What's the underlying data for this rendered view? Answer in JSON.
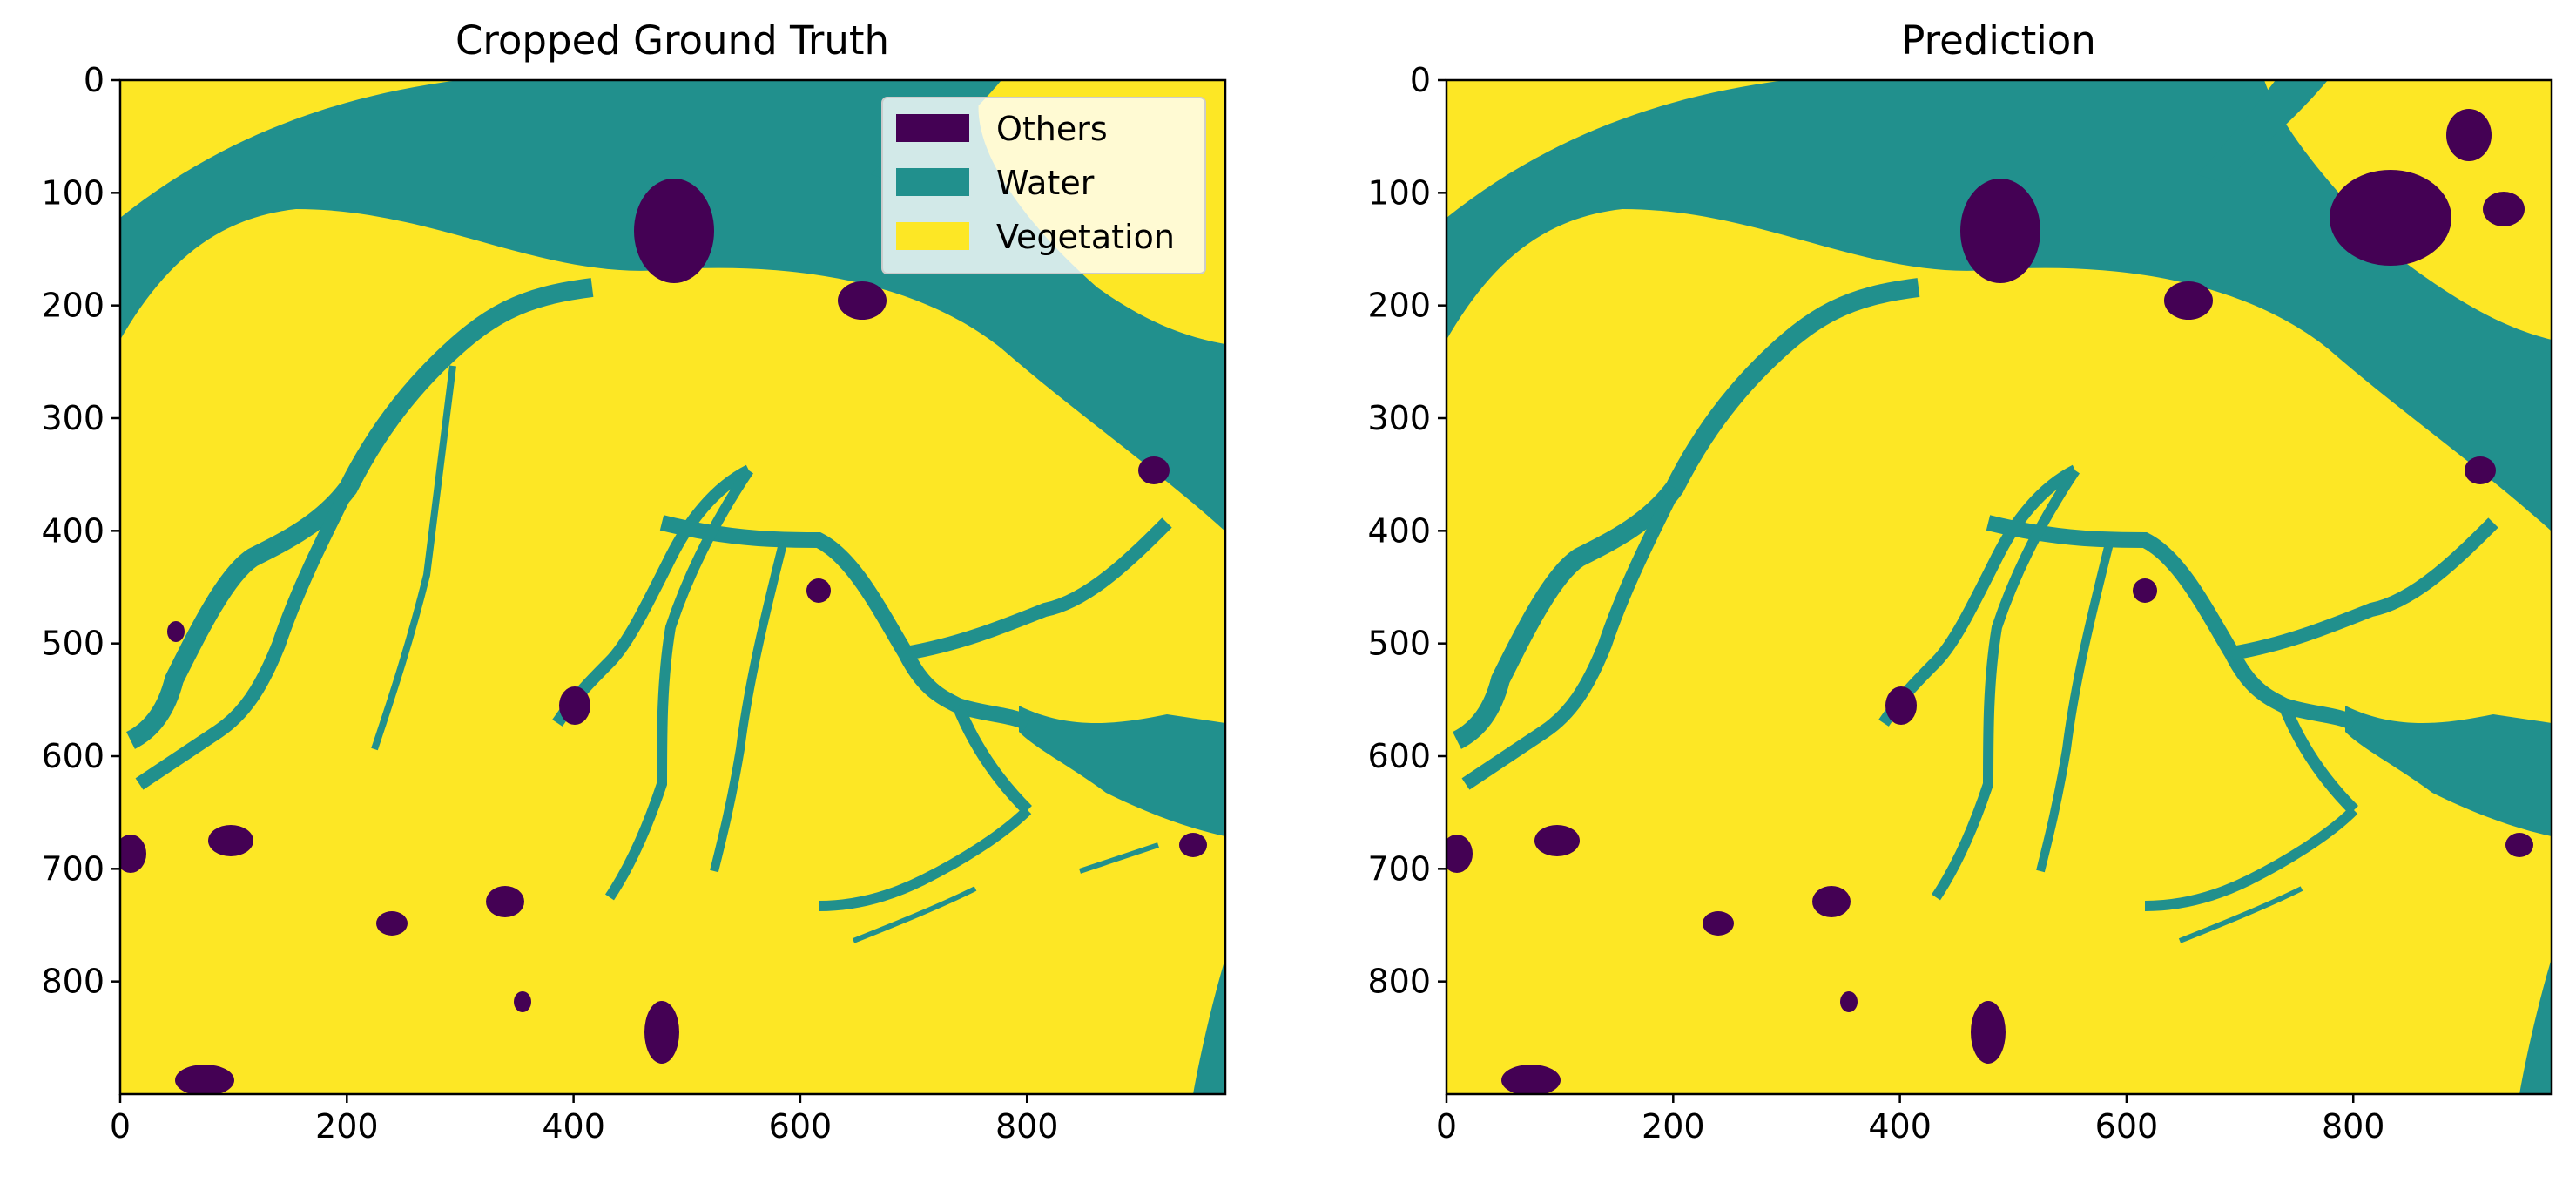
{
  "colors": {
    "others": "#440154",
    "water": "#21908d",
    "vegetation": "#fde725"
  },
  "chart_data": [
    {
      "type": "heatmap",
      "title": "Cropped Ground Truth",
      "xlabel": "",
      "ylabel": "",
      "xlim": [
        0,
        975
      ],
      "ylim": [
        900,
        0
      ],
      "xticks": [
        0,
        200,
        400,
        600,
        800
      ],
      "yticks": [
        0,
        100,
        200,
        300,
        400,
        500,
        600,
        700,
        800
      ],
      "classes": [
        "Others",
        "Water",
        "Vegetation"
      ],
      "legend": {
        "placement": "upper-right",
        "entries": [
          "Others",
          "Water",
          "Vegetation"
        ]
      }
    },
    {
      "type": "heatmap",
      "title": "Prediction",
      "xlabel": "",
      "ylabel": "",
      "xlim": [
        0,
        975
      ],
      "ylim": [
        900,
        0
      ],
      "xticks": [
        0,
        200,
        400,
        600,
        800
      ],
      "yticks": [
        0,
        100,
        200,
        300,
        400,
        500,
        600,
        700,
        800
      ],
      "classes": [
        "Others",
        "Water",
        "Vegetation"
      ]
    }
  ]
}
